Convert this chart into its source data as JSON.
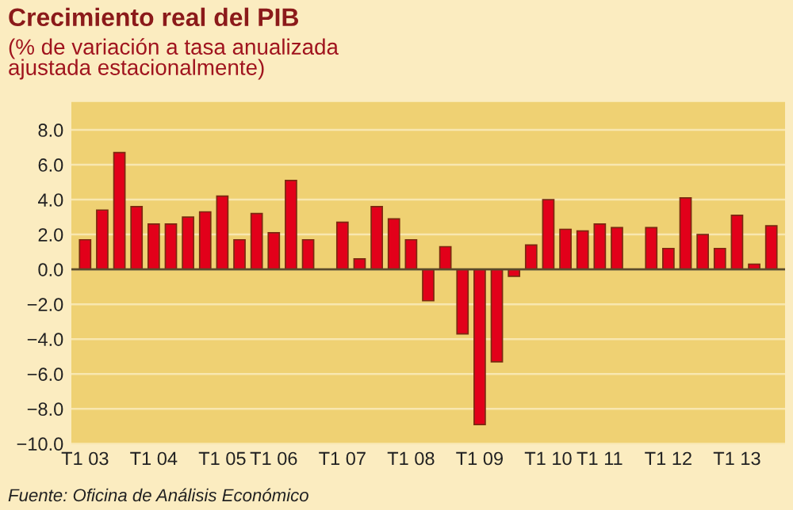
{
  "chart_data": {
    "type": "bar",
    "title": "Crecimiento real del PIB",
    "subtitle": "(% de variación a tasa anualizada\najustada estacionalmente)",
    "categories": [
      "T1 03",
      null,
      null,
      null,
      "T1 04",
      null,
      null,
      null,
      "T1 05",
      null,
      null,
      "T1 06",
      null,
      null,
      null,
      "T1 07",
      null,
      null,
      null,
      "T1 08",
      null,
      null,
      null,
      "T1 09",
      null,
      null,
      null,
      "T1 10",
      null,
      null,
      "T1 11",
      null,
      null,
      null,
      "T1 12",
      null,
      null,
      null,
      "T1 13",
      null,
      null
    ],
    "values": [
      1.7,
      3.4,
      6.7,
      3.6,
      2.6,
      2.6,
      3.0,
      3.3,
      4.2,
      1.7,
      3.2,
      2.1,
      5.1,
      1.7,
      null,
      2.7,
      0.6,
      3.6,
      2.9,
      1.7,
      -1.8,
      1.3,
      -3.7,
      -8.9,
      -5.3,
      -0.4,
      1.4,
      4.0,
      2.3,
      2.2,
      2.6,
      2.4,
      null,
      2.4,
      1.2,
      4.1,
      2.0,
      1.2,
      3.1,
      0.3,
      2.5
    ],
    "color": "#e2001a",
    "ylim": [
      -10,
      9.6
    ],
    "yticks": [
      {
        "value": -10,
        "label": "−10.0"
      },
      {
        "value": -8,
        "label": "−8.0"
      },
      {
        "value": -6,
        "label": "−6.0"
      },
      {
        "value": -4,
        "label": "−4.0"
      },
      {
        "value": -2,
        "label": "−2.0"
      },
      {
        "value": 0,
        "label": "0.0"
      },
      {
        "value": 2,
        "label": "2.0"
      },
      {
        "value": 4,
        "label": "4.0"
      },
      {
        "value": 6,
        "label": "6.0"
      },
      {
        "value": 8,
        "label": "8.0"
      }
    ],
    "grid": "y",
    "annotations": [
      "Fuente: Oficina de Análisis Económico"
    ]
  }
}
